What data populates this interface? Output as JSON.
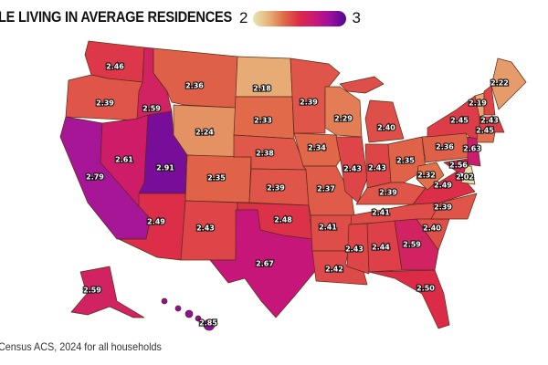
{
  "title": "LE LIVING IN AVERAGE RESIDENCES",
  "legend": {
    "min_label": "2",
    "max_label": "3",
    "min": 2,
    "max": 3,
    "colors": [
      "#e6e6b4",
      "#e8b27a",
      "#e06a48",
      "#dc2a48",
      "#c81878",
      "#9a10a0",
      "#4e0890"
    ]
  },
  "source": "Census ACS, 2024 for all households",
  "states": [
    {
      "code": "WA",
      "value": "2.46"
    },
    {
      "code": "OR",
      "value": "2.39"
    },
    {
      "code": "CA",
      "value": "2.79"
    },
    {
      "code": "ID",
      "value": "2.59"
    },
    {
      "code": "NV",
      "value": "2.61"
    },
    {
      "code": "UT",
      "value": "2.91"
    },
    {
      "code": "MT",
      "value": "2.36"
    },
    {
      "code": "WY",
      "value": "2.24"
    },
    {
      "code": "CO",
      "value": "2.35"
    },
    {
      "code": "AZ",
      "value": "2.49"
    },
    {
      "code": "NM",
      "value": "2.43"
    },
    {
      "code": "ND",
      "value": "2.18"
    },
    {
      "code": "SD",
      "value": "2.33"
    },
    {
      "code": "NE",
      "value": "2.38"
    },
    {
      "code": "KS",
      "value": "2.39"
    },
    {
      "code": "OK",
      "value": "2.48"
    },
    {
      "code": "TX",
      "value": "2.67"
    },
    {
      "code": "MN",
      "value": "2.39"
    },
    {
      "code": "IA",
      "value": "2.34"
    },
    {
      "code": "MO",
      "value": "2.37"
    },
    {
      "code": "AR",
      "value": "2.41"
    },
    {
      "code": "LA",
      "value": "2.42"
    },
    {
      "code": "WI",
      "value": "2.29"
    },
    {
      "code": "IL",
      "value": "2.43"
    },
    {
      "code": "MI",
      "value": "2.40"
    },
    {
      "code": "IN",
      "value": "2.43"
    },
    {
      "code": "OH",
      "value": "2.35"
    },
    {
      "code": "KY",
      "value": "2.39"
    },
    {
      "code": "TN",
      "value": "2.41"
    },
    {
      "code": "MS",
      "value": "2.43"
    },
    {
      "code": "AL",
      "value": "2.44"
    },
    {
      "code": "GA",
      "value": "2.59"
    },
    {
      "code": "FL",
      "value": "2.50"
    },
    {
      "code": "SC",
      "value": "2.40"
    },
    {
      "code": "NC",
      "value": "2.39"
    },
    {
      "code": "VA",
      "value": "2.49"
    },
    {
      "code": "WV",
      "value": "2.32"
    },
    {
      "code": "PA",
      "value": "2.36"
    },
    {
      "code": "NY",
      "value": "2.45"
    },
    {
      "code": "NJ",
      "value": "2.63"
    },
    {
      "code": "MD",
      "value": "2.56"
    },
    {
      "code": "DE",
      "value": "2.02"
    },
    {
      "code": "VT",
      "value": "2.19"
    },
    {
      "code": "NH",
      "value": "2.43"
    },
    {
      "code": "ME",
      "value": "2.22"
    },
    {
      "code": "MA",
      "value": "2.45"
    },
    {
      "code": "AK",
      "value": "2.59"
    },
    {
      "code": "HI",
      "value": "2.85"
    }
  ]
}
